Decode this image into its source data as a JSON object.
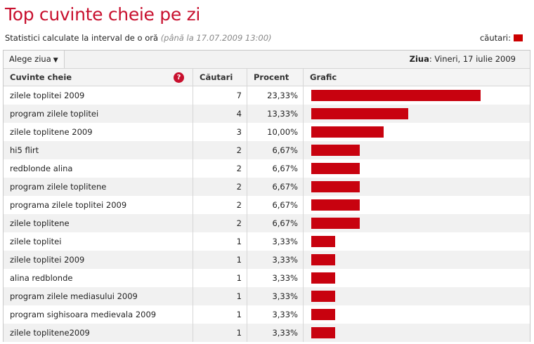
{
  "header": {
    "title": "Top cuvinte cheie pe zi",
    "subtitle": "Statistici calculate la interval de o oră",
    "subtitle_note": "(până la 17.07.2009 13:00)",
    "legend_label": "căutari:",
    "legend_color": "#cc0000"
  },
  "toolbar": {
    "dropdown_label": "Alege ziua",
    "day_label": "Ziua",
    "day_value": ": Vineri, 17 iulie 2009"
  },
  "table": {
    "columns": [
      "Cuvinte cheie",
      "Căutari",
      "Procent",
      "Grafic"
    ],
    "help_icon": "?",
    "rows": [
      {
        "keyword": "zilele toplitei 2009",
        "count": "7",
        "percent": "23,33%",
        "value": 7
      },
      {
        "keyword": "program zilele toplitei",
        "count": "4",
        "percent": "13,33%",
        "value": 4
      },
      {
        "keyword": "zilele toplitene 2009",
        "count": "3",
        "percent": "10,00%",
        "value": 3
      },
      {
        "keyword": "hi5 flirt",
        "count": "2",
        "percent": "6,67%",
        "value": 2
      },
      {
        "keyword": "redblonde alina",
        "count": "2",
        "percent": "6,67%",
        "value": 2
      },
      {
        "keyword": "program zilele toplitene",
        "count": "2",
        "percent": "6,67%",
        "value": 2
      },
      {
        "keyword": "programa zilele toplitei 2009",
        "count": "2",
        "percent": "6,67%",
        "value": 2
      },
      {
        "keyword": "zilele toplitene",
        "count": "2",
        "percent": "6,67%",
        "value": 2
      },
      {
        "keyword": "zilele toplitei",
        "count": "1",
        "percent": "3,33%",
        "value": 1
      },
      {
        "keyword": "zilele toplitei 2009",
        "count": "1",
        "percent": "3,33%",
        "value": 1
      },
      {
        "keyword": "alina redblonde",
        "count": "1",
        "percent": "3,33%",
        "value": 1
      },
      {
        "keyword": "program zilele mediasului 2009",
        "count": "1",
        "percent": "3,33%",
        "value": 1
      },
      {
        "keyword": "program sighisoara medievala 2009",
        "count": "1",
        "percent": "3,33%",
        "value": 1
      },
      {
        "keyword": "zilele toplitene2009",
        "count": "1",
        "percent": "3,33%",
        "value": 1
      }
    ]
  }
}
